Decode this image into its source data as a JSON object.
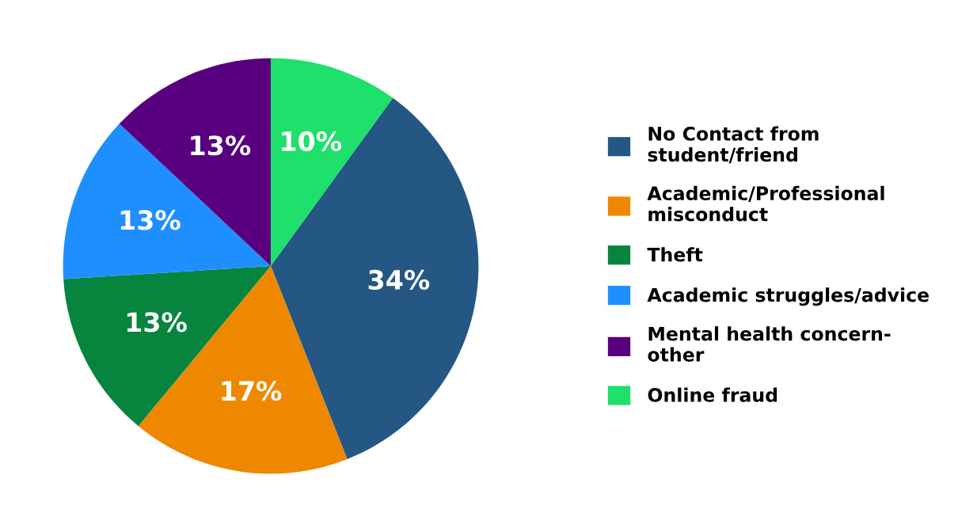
{
  "chart_data": {
    "type": "pie",
    "categories": [
      "No Contact from\nstudent/friend",
      "Academic/Professional\nmisconduct",
      "Theft",
      "Academic struggles/advice",
      "Mental health concern-\nother",
      "Online fraud"
    ],
    "values": [
      34,
      17,
      13,
      13,
      13,
      10
    ],
    "colors": [
      "#245784",
      "#ee8800",
      "#07843e",
      "#1f8fff",
      "#580080",
      "#1ee06a"
    ],
    "value_labels": [
      "34%",
      "17%",
      "13%",
      "13%",
      "13%",
      "10%"
    ],
    "legend": "right"
  }
}
